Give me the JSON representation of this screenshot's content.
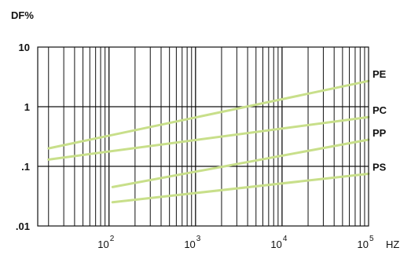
{
  "chart_data": {
    "type": "line",
    "title": "",
    "ylabel": "DF%",
    "xlabel": "HZ",
    "x_scale": "log",
    "y_scale": "log",
    "xlim": [
      15,
      100000
    ],
    "ylim": [
      0.01,
      10
    ],
    "grid": true,
    "y_ticks": [
      {
        "value": 10,
        "label": "10"
      },
      {
        "value": 1,
        "label": "1"
      },
      {
        "value": 0.1,
        "label": ".1"
      },
      {
        "value": 0.01,
        "label": ".01"
      }
    ],
    "x_ticks": [
      {
        "value": 100,
        "base": "10",
        "exp": "2"
      },
      {
        "value": 1000,
        "base": "10",
        "exp": "3"
      },
      {
        "value": 10000,
        "base": "10",
        "exp": "4"
      },
      {
        "value": 100000,
        "base": "10",
        "exp": "5"
      }
    ],
    "line_color": "#c8df8a",
    "series": [
      {
        "name": "PE",
        "points": [
          [
            20,
            0.2
          ],
          [
            100000,
            2.7
          ]
        ]
      },
      {
        "name": "PC",
        "points": [
          [
            20,
            0.13
          ],
          [
            100000,
            0.67
          ]
        ]
      },
      {
        "name": "PP",
        "points": [
          [
            110,
            0.045
          ],
          [
            100000,
            0.28
          ]
        ]
      },
      {
        "name": "PS",
        "points": [
          [
            110,
            0.025
          ],
          [
            100000,
            0.075
          ]
        ]
      }
    ]
  }
}
